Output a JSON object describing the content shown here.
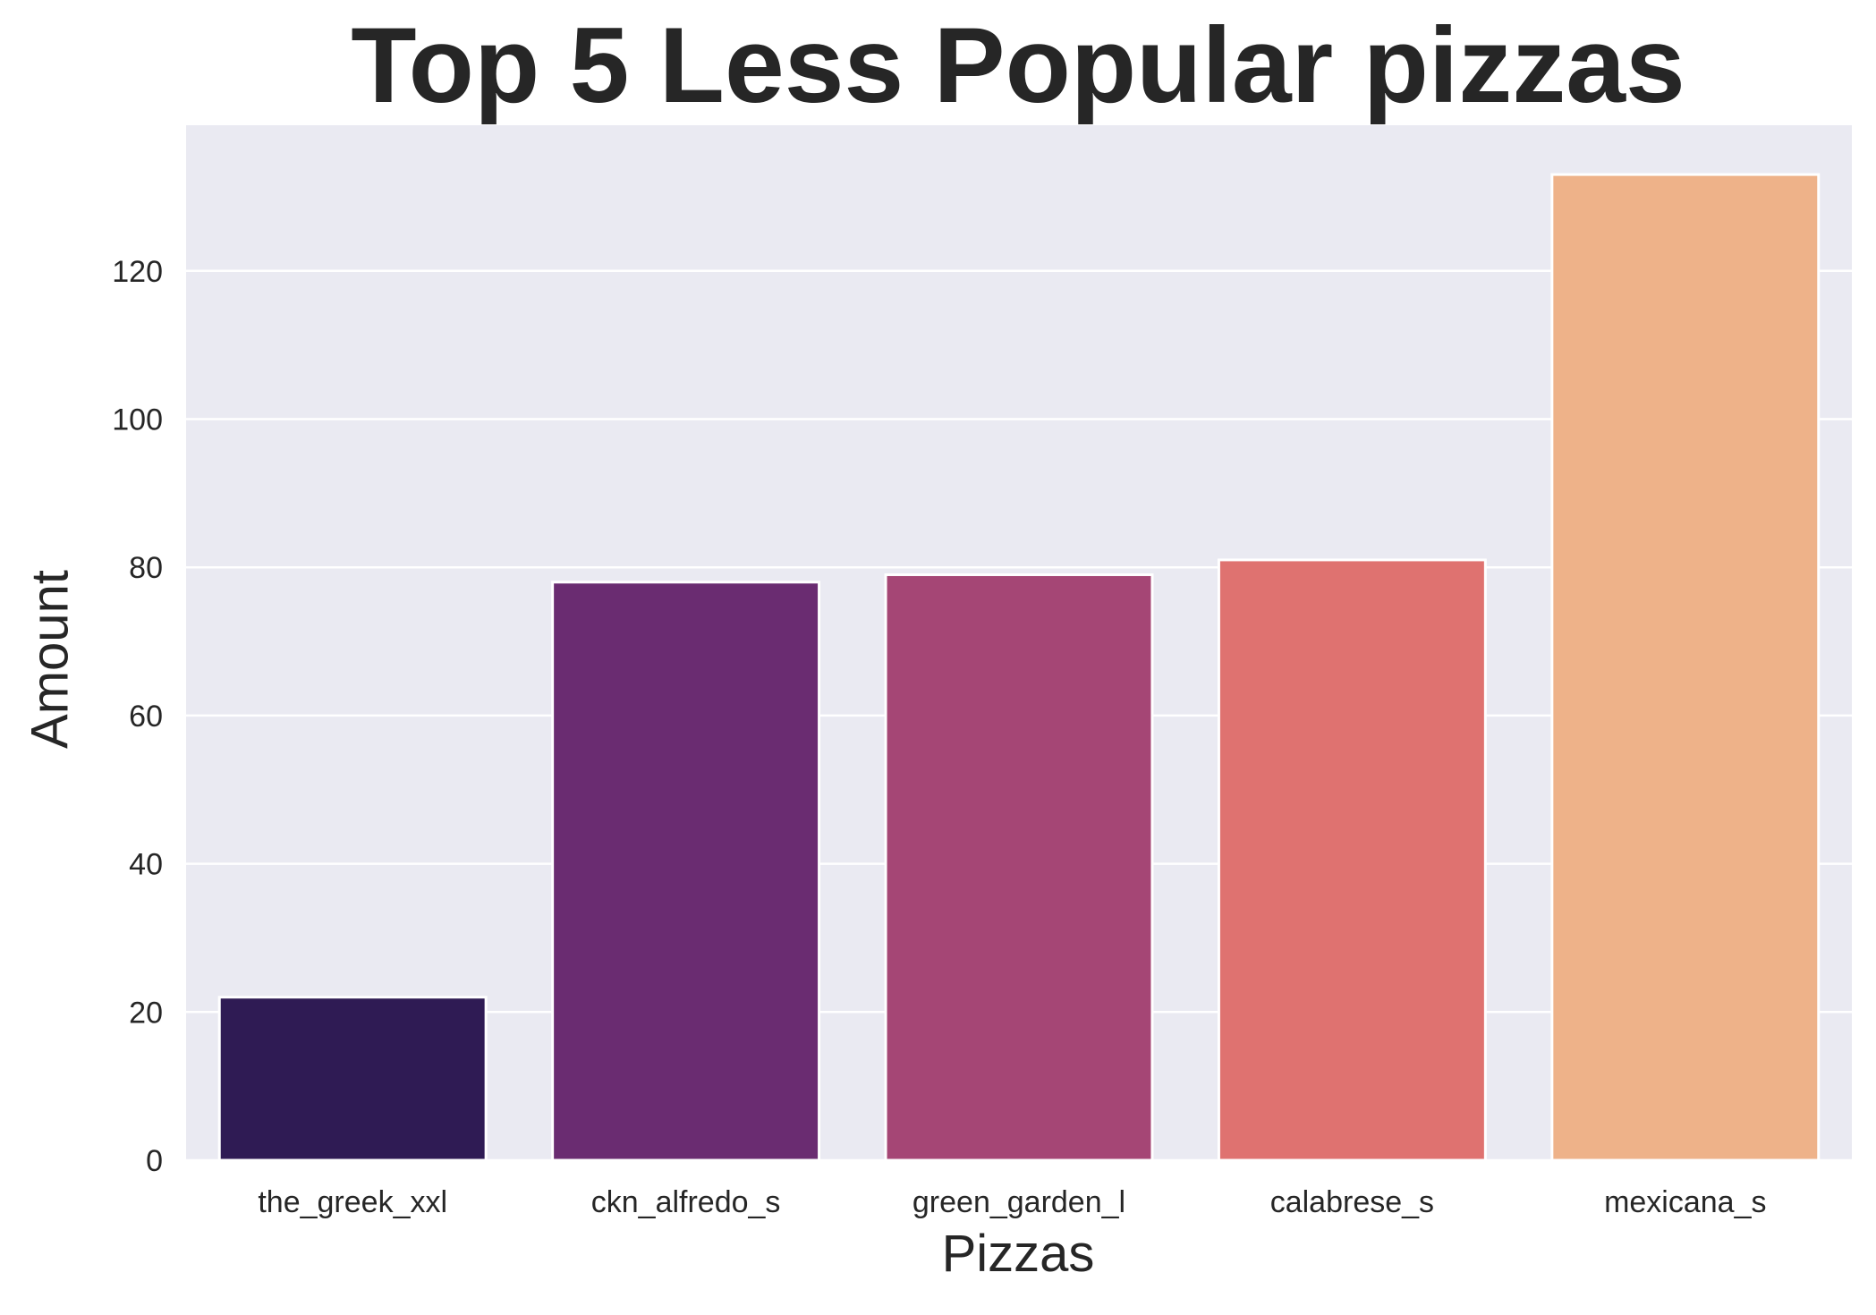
{
  "chart_data": {
    "type": "bar",
    "title": "Top 5 Less Popular pizzas",
    "xlabel": "Pizzas",
    "ylabel": "Amount",
    "categories": [
      "the_greek_xxl",
      "ckn_alfredo_s",
      "green_garden_l",
      "calabrese_s",
      "mexicana_s"
    ],
    "values": [
      22,
      78,
      79,
      81,
      133
    ],
    "colors": [
      "#2f1b54",
      "#6a2c71",
      "#a54675",
      "#df7270",
      "#eeb289"
    ],
    "yticks": [
      0,
      20,
      40,
      60,
      80,
      100,
      120
    ],
    "ylim": [
      0,
      139.65
    ],
    "grid": true,
    "background": "#eaeaf2",
    "grid_color": "#ffffff"
  }
}
